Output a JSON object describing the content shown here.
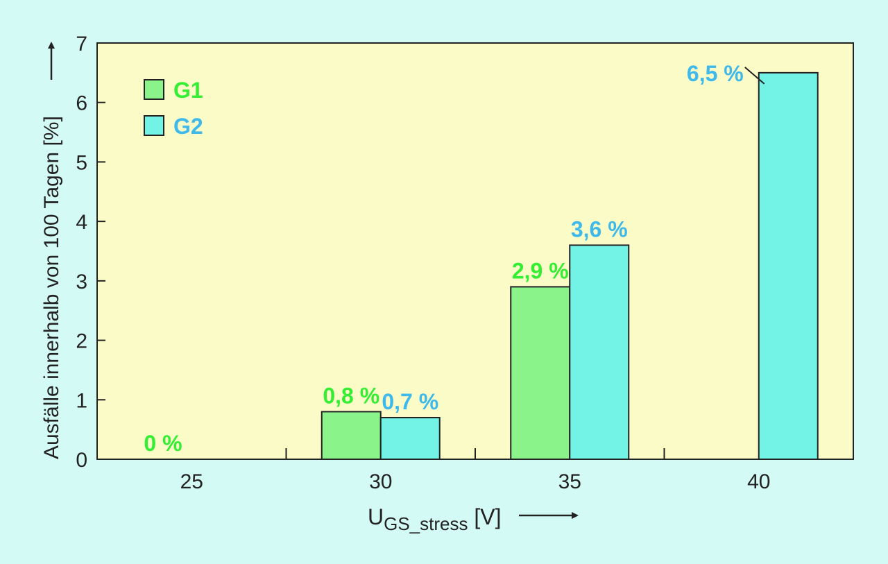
{
  "colors": {
    "page_background": "#d4faf5",
    "plot_background": "#fafbc7",
    "G1": "#8af48a",
    "G2": "#72f3e6",
    "G1_label": "#33ee33",
    "G2_label": "#3fb8ea",
    "axis": "#222222"
  },
  "chart_data": {
    "type": "bar",
    "categories": [
      "25",
      "30",
      "35",
      "40"
    ],
    "series": [
      {
        "name": "G1",
        "values": [
          0,
          0.8,
          2.9,
          null
        ],
        "labels": [
          "0 %",
          "0,8 %",
          "2,9 %",
          ""
        ]
      },
      {
        "name": "G2",
        "values": [
          null,
          0.7,
          3.6,
          6.5
        ],
        "labels": [
          "",
          "0,7 %",
          "3,6 %",
          "6,5 %"
        ]
      }
    ],
    "y_ticks": [
      "0",
      "1",
      "2",
      "3",
      "4",
      "5",
      "6",
      "7"
    ],
    "ylim": [
      0,
      7
    ],
    "ylabel": "Ausfälle innerhalb von 100 Tagen [%]",
    "xlabel": {
      "main": "U",
      "subscript": "GS_stress",
      "unit": "[V]"
    },
    "legend": {
      "position": "top-left",
      "entries": [
        "G1",
        "G2"
      ]
    },
    "grid": false
  }
}
